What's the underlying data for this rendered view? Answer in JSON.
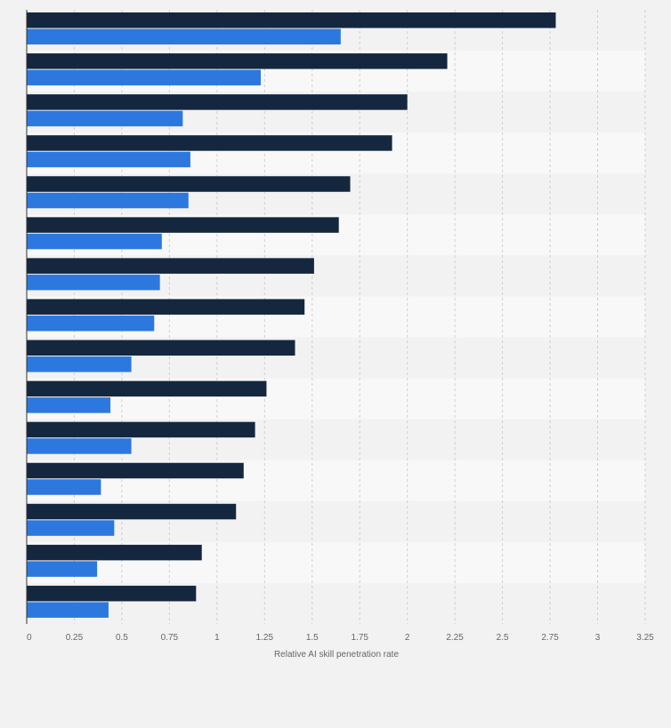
{
  "chart_data": {
    "type": "bar",
    "orientation": "horizontal",
    "xlabel": "Relative AI skill penetration rate",
    "xlim": [
      0,
      3.25
    ],
    "ticks": [
      "0",
      "0.25",
      "0.5",
      "0.75",
      "1",
      "1.25",
      "1.5",
      "1.75",
      "2",
      "2.25",
      "2.5",
      "2.75",
      "3",
      "3.25"
    ],
    "tick_values": [
      0,
      0.25,
      0.5,
      0.75,
      1,
      1.25,
      1.5,
      1.75,
      2,
      2.25,
      2.5,
      2.75,
      3,
      3.25
    ],
    "grid": true,
    "category_labels_visible": false,
    "category_count": 15,
    "series": [
      {
        "color": "#14273f",
        "values": [
          2.78,
          2.21,
          2.0,
          1.92,
          1.7,
          1.64,
          1.51,
          1.46,
          1.41,
          1.26,
          1.2,
          1.14,
          1.1,
          0.92,
          0.89
        ]
      },
      {
        "color": "#2c78df",
        "values": [
          1.65,
          1.23,
          0.82,
          0.86,
          0.85,
          0.71,
          0.7,
          0.67,
          0.55,
          0.44,
          0.55,
          0.39,
          0.46,
          0.37,
          0.43
        ]
      }
    ]
  }
}
